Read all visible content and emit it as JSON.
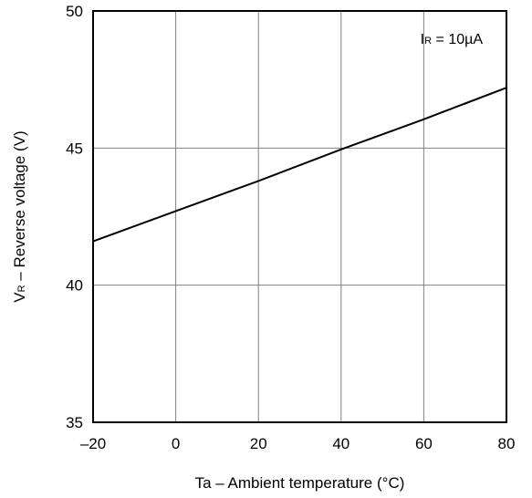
{
  "chart_data": {
    "type": "line",
    "title": "",
    "xlabel": "Ta – Ambient temperature (°C)",
    "ylabel": {
      "main": "V",
      "sub": "R",
      "rest": " – Reverse voltage (V)"
    },
    "xlim": [
      -20,
      80
    ],
    "ylim": [
      35,
      50
    ],
    "x_ticks": [
      -20,
      0,
      20,
      40,
      60,
      80
    ],
    "x_tick_labels": [
      "–20",
      "0",
      "20",
      "40",
      "60",
      "80"
    ],
    "y_ticks": [
      35,
      40,
      45,
      50
    ],
    "y_tick_labels": [
      "35",
      "40",
      "45",
      "50"
    ],
    "grid": true,
    "annotation": {
      "main": "I",
      "sub": "R",
      "rest": " = 10µA"
    },
    "series": [
      {
        "x": [
          -20,
          0,
          20,
          40,
          60,
          80
        ],
        "y": [
          41.6,
          42.7,
          43.8,
          44.95,
          46.05,
          47.2
        ]
      }
    ],
    "colors": {
      "line": "#000000",
      "grid": "#808080",
      "frame": "#000000"
    }
  }
}
